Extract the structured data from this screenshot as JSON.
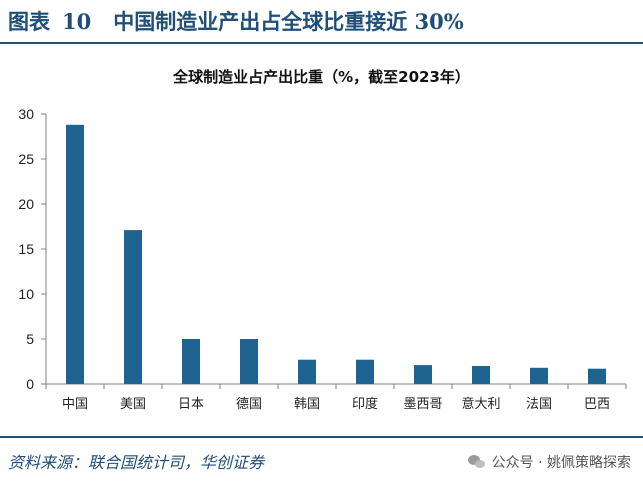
{
  "figure": {
    "label": "图表",
    "number": "10",
    "title": "中国制造业产出占全球比重接近 30%"
  },
  "source": "资料来源：联合国统计司，华创证券",
  "watermark": {
    "icon": "wechat-icon",
    "text": "公众号 · 姚佩策略探索"
  },
  "colors": {
    "bar": "#1f6391",
    "accent": "#1f4e79"
  },
  "chart_data": {
    "type": "bar",
    "title": "全球制造业占产出比重（%，截至2023年）",
    "xlabel": "",
    "ylabel": "",
    "categories": [
      "中国",
      "美国",
      "日本",
      "德国",
      "韩国",
      "印度",
      "墨西哥",
      "意大利",
      "法国",
      "巴西"
    ],
    "values": [
      28.8,
      17.1,
      5.0,
      5.0,
      2.7,
      2.7,
      2.1,
      2.0,
      1.8,
      1.7
    ],
    "ylim": [
      0,
      30
    ],
    "yticks": [
      0,
      5,
      10,
      15,
      20,
      25,
      30
    ],
    "grid": false,
    "legend": "none"
  }
}
